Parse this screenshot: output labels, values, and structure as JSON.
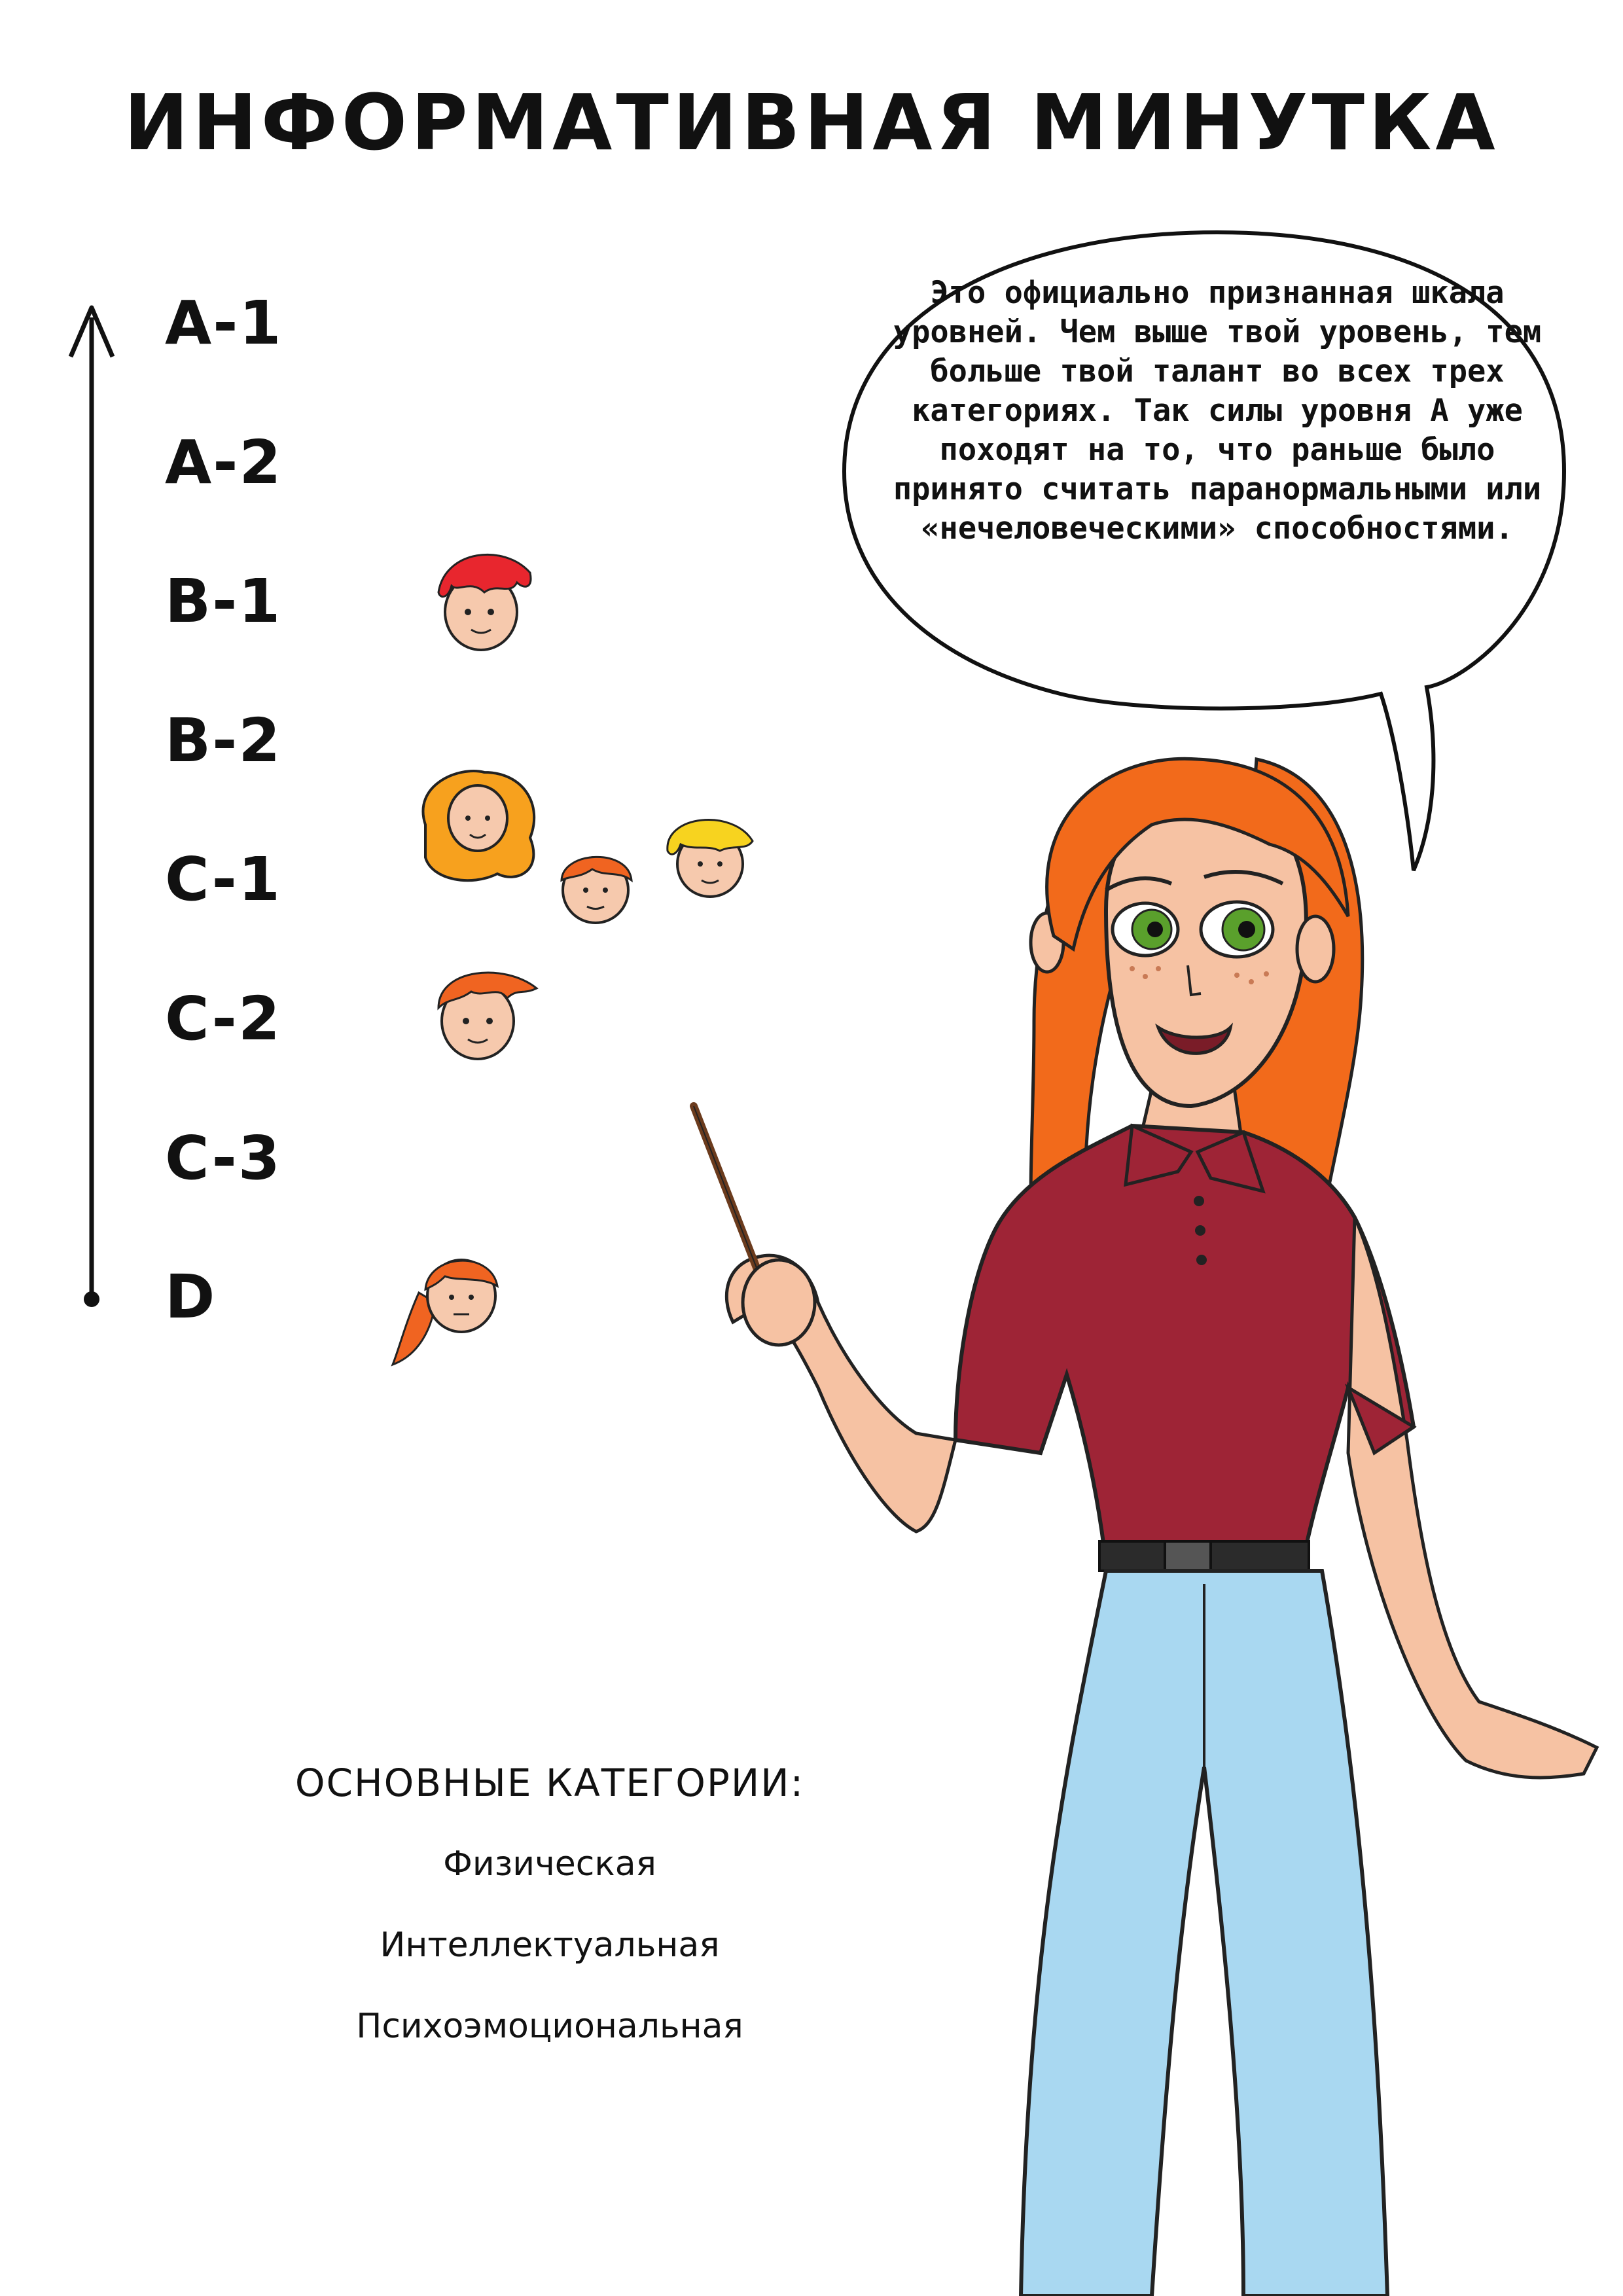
{
  "title": "ИНФОРМАТИВНАЯ МИНУТКА",
  "levels": [
    "A-1",
    "A-2",
    "B-1",
    "B-2",
    "C-1",
    "C-2",
    "C-3",
    "D"
  ],
  "speech": "Это официально признанная шкала уровней. Чем выше твой уровень, тем больше твой талант во всех трех категориях. Так силы уровня А уже походят на то, что раньше было принято считать паранормальными или «нечеловеческими» способностями.",
  "categories": {
    "title": "ОСНОВНЫЕ КАТЕГОРИИ:",
    "items": [
      "Физическая",
      "Интеллектуальная",
      "Психоэмоциональная"
    ]
  },
  "colors": {
    "hair": "#f26a1b",
    "shirt": "#9e2436",
    "jeans": "#a9d8f1",
    "skin": "#f6c2a3",
    "eyes": "#5aa02c"
  }
}
